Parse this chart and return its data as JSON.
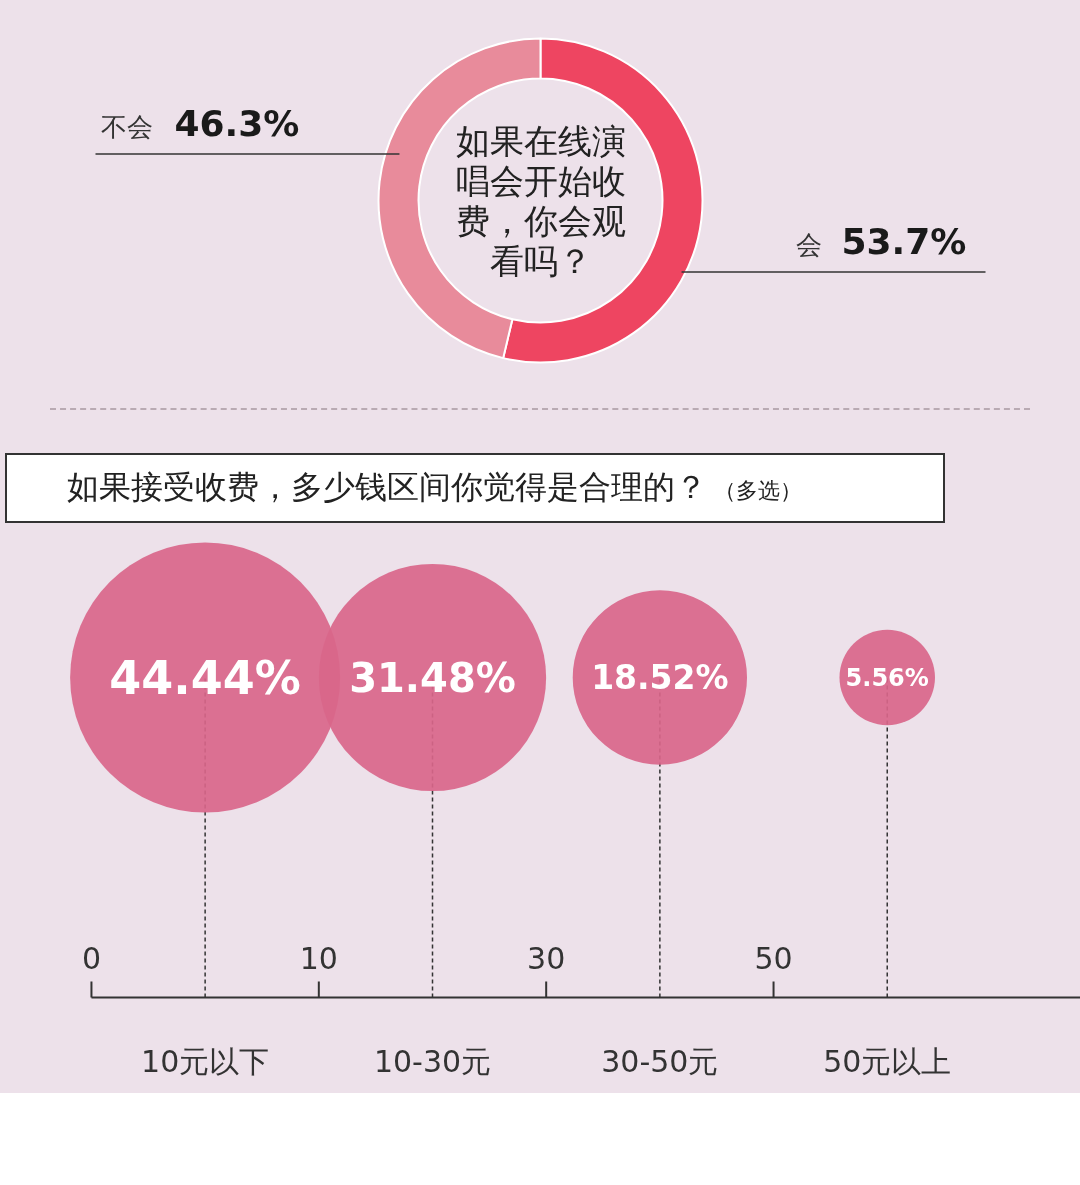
{
  "chart_data": [
    {
      "type": "donut",
      "title": "如果在线演唱会开始收费，你会观看吗？",
      "categories": [
        "会",
        "不会"
      ],
      "values": [
        53.7,
        46.3
      ],
      "colors": [
        "#ee4561",
        "#e88b9b"
      ],
      "value_labels": [
        "53.7%",
        "46.3%"
      ]
    },
    {
      "type": "other",
      "title": "如果接受收费，多少钱区间你觉得是合理的？",
      "subtitle": "（多选）",
      "categories": [
        "10元以下",
        "10-30元",
        "30-50元",
        "50元以上"
      ],
      "values": [
        44.44,
        31.48,
        18.52,
        5.56
      ],
      "value_labels": [
        "44.44%",
        "31.48%",
        "18.52%",
        "5.56%"
      ],
      "color": "#d9668a",
      "annotations": [
        "0",
        "10",
        "30",
        "50"
      ]
    }
  ]
}
